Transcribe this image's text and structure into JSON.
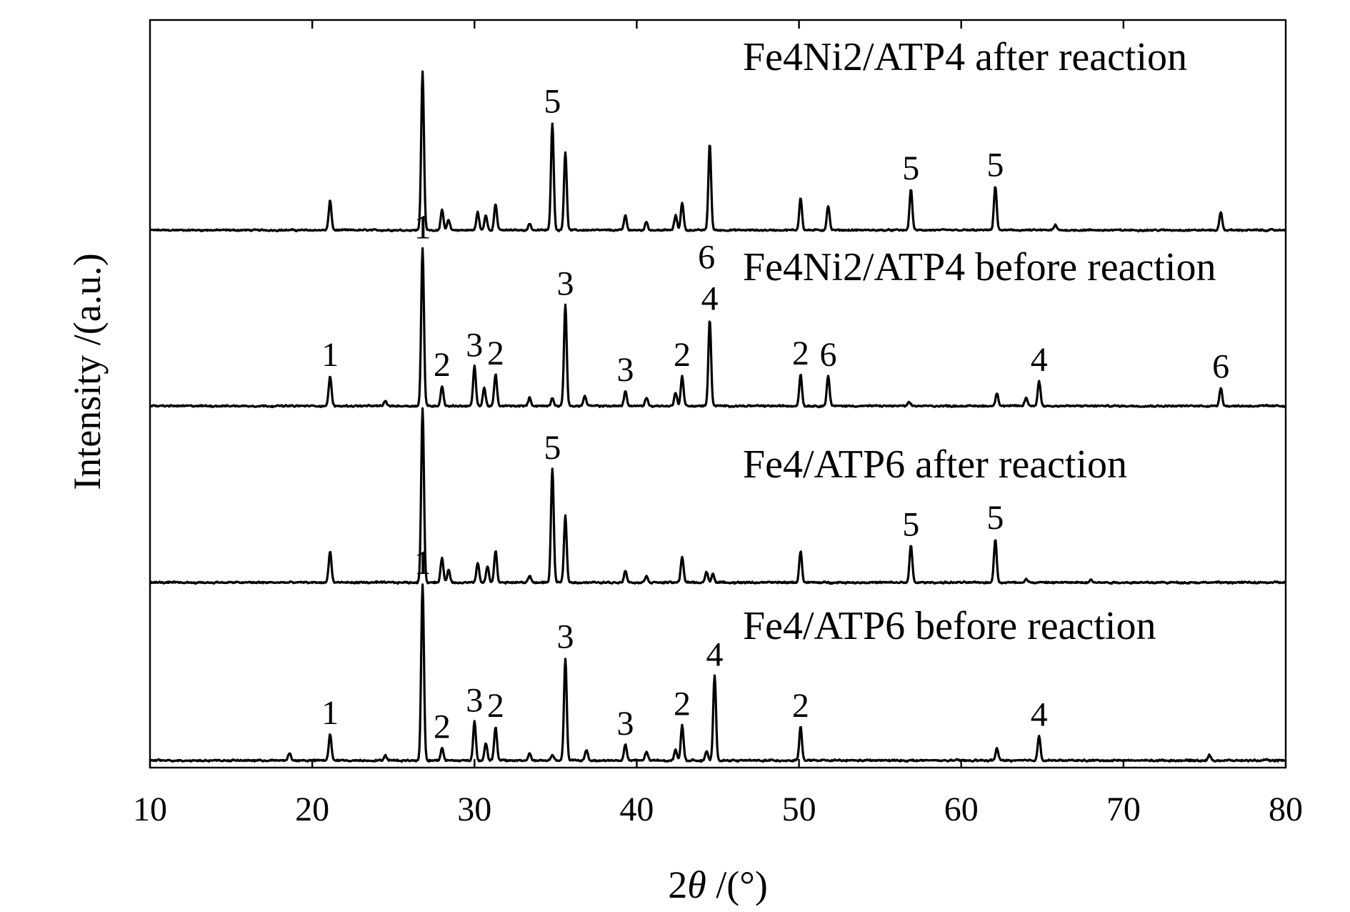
{
  "chart_data": {
    "type": "line",
    "xlabel_prefix": "2",
    "xlabel_symbol": "θ",
    "xlabel_unit": " /(°)",
    "ylabel": "Intensity /(a.u.)",
    "xlim": [
      10,
      80
    ],
    "xticks": [
      10,
      20,
      30,
      40,
      50,
      60,
      70,
      80
    ],
    "y_tick_labels": false,
    "grid": false,
    "legend": "none",
    "series": [
      {
        "name": "Fe4Ni2/ATP4 after reaction",
        "peaks": [
          {
            "x": 21.1,
            "h": 0.18
          },
          {
            "x": 26.8,
            "h": 0.97
          },
          {
            "x": 28.0,
            "h": 0.12
          },
          {
            "x": 28.4,
            "h": 0.06
          },
          {
            "x": 30.2,
            "h": 0.11
          },
          {
            "x": 30.7,
            "h": 0.09
          },
          {
            "x": 31.3,
            "h": 0.16
          },
          {
            "x": 33.4,
            "h": 0.04
          },
          {
            "x": 34.8,
            "h": 0.66
          },
          {
            "x": 35.6,
            "h": 0.48
          },
          {
            "x": 39.3,
            "h": 0.09
          },
          {
            "x": 40.6,
            "h": 0.05
          },
          {
            "x": 42.4,
            "h": 0.09
          },
          {
            "x": 42.8,
            "h": 0.17
          },
          {
            "x": 44.5,
            "h": 0.53
          },
          {
            "x": 50.1,
            "h": 0.2
          },
          {
            "x": 51.8,
            "h": 0.15
          },
          {
            "x": 56.9,
            "h": 0.25
          },
          {
            "x": 62.1,
            "h": 0.27
          },
          {
            "x": 65.8,
            "h": 0.03
          },
          {
            "x": 76.0,
            "h": 0.11
          }
        ],
        "labels": [
          {
            "x": 34.8,
            "text": "5"
          },
          {
            "x": 56.9,
            "text": "5"
          },
          {
            "x": 62.1,
            "text": "5"
          }
        ]
      },
      {
        "name": "Fe4Ni2/ATP4 before reaction",
        "peaks": [
          {
            "x": 21.1,
            "h": 0.18
          },
          {
            "x": 24.5,
            "h": 0.03
          },
          {
            "x": 26.8,
            "h": 0.95
          },
          {
            "x": 28.0,
            "h": 0.12
          },
          {
            "x": 30.0,
            "h": 0.24
          },
          {
            "x": 30.6,
            "h": 0.11
          },
          {
            "x": 31.3,
            "h": 0.19
          },
          {
            "x": 33.4,
            "h": 0.05
          },
          {
            "x": 34.8,
            "h": 0.05
          },
          {
            "x": 35.6,
            "h": 0.61
          },
          {
            "x": 36.8,
            "h": 0.06
          },
          {
            "x": 39.3,
            "h": 0.09
          },
          {
            "x": 40.6,
            "h": 0.05
          },
          {
            "x": 42.4,
            "h": 0.08
          },
          {
            "x": 42.8,
            "h": 0.18
          },
          {
            "x": 44.5,
            "h": 0.52
          },
          {
            "x": 50.1,
            "h": 0.19
          },
          {
            "x": 51.8,
            "h": 0.18
          },
          {
            "x": 56.8,
            "h": 0.02
          },
          {
            "x": 62.2,
            "h": 0.08
          },
          {
            "x": 64.0,
            "h": 0.05
          },
          {
            "x": 64.8,
            "h": 0.15
          },
          {
            "x": 76.0,
            "h": 0.11
          }
        ],
        "labels": [
          {
            "x": 21.1,
            "text": "1"
          },
          {
            "x": 26.8,
            "text": "1"
          },
          {
            "x": 28.0,
            "text": "2"
          },
          {
            "x": 30.0,
            "text": "3"
          },
          {
            "x": 31.3,
            "text": "2"
          },
          {
            "x": 35.6,
            "text": "3"
          },
          {
            "x": 39.3,
            "text": "3"
          },
          {
            "x": 42.8,
            "text": "2"
          },
          {
            "x": 44.5,
            "text": "4"
          },
          {
            "x": 44.3,
            "text": "6",
            "stacked": true
          },
          {
            "x": 50.1,
            "text": "2"
          },
          {
            "x": 51.8,
            "text": "6"
          },
          {
            "x": 64.8,
            "text": "4"
          },
          {
            "x": 76.0,
            "text": "6"
          }
        ]
      },
      {
        "name": "Fe4/ATP6 after reaction",
        "peaks": [
          {
            "x": 21.1,
            "h": 0.18
          },
          {
            "x": 26.8,
            "h": 1.0
          },
          {
            "x": 28.0,
            "h": 0.14
          },
          {
            "x": 28.4,
            "h": 0.07
          },
          {
            "x": 30.2,
            "h": 0.11
          },
          {
            "x": 30.8,
            "h": 0.09
          },
          {
            "x": 31.3,
            "h": 0.18
          },
          {
            "x": 33.4,
            "h": 0.04
          },
          {
            "x": 34.8,
            "h": 0.65
          },
          {
            "x": 35.6,
            "h": 0.38
          },
          {
            "x": 39.3,
            "h": 0.07
          },
          {
            "x": 40.6,
            "h": 0.04
          },
          {
            "x": 42.8,
            "h": 0.15
          },
          {
            "x": 44.3,
            "h": 0.06
          },
          {
            "x": 44.7,
            "h": 0.05
          },
          {
            "x": 50.1,
            "h": 0.18
          },
          {
            "x": 56.9,
            "h": 0.21
          },
          {
            "x": 62.1,
            "h": 0.25
          },
          {
            "x": 64.0,
            "h": 0.02
          },
          {
            "x": 68.0,
            "h": 0.02
          }
        ],
        "labels": [
          {
            "x": 34.8,
            "text": "5"
          },
          {
            "x": 56.9,
            "text": "5"
          },
          {
            "x": 62.1,
            "text": "5"
          }
        ]
      },
      {
        "name": "Fe4/ATP6 before reaction",
        "peaks": [
          {
            "x": 18.6,
            "h": 0.04
          },
          {
            "x": 21.1,
            "h": 0.15
          },
          {
            "x": 24.5,
            "h": 0.03
          },
          {
            "x": 26.8,
            "h": 1.0
          },
          {
            "x": 28.0,
            "h": 0.07
          },
          {
            "x": 30.0,
            "h": 0.22
          },
          {
            "x": 30.7,
            "h": 0.1
          },
          {
            "x": 31.3,
            "h": 0.19
          },
          {
            "x": 33.4,
            "h": 0.04
          },
          {
            "x": 34.8,
            "h": 0.03
          },
          {
            "x": 35.6,
            "h": 0.58
          },
          {
            "x": 36.9,
            "h": 0.06
          },
          {
            "x": 39.3,
            "h": 0.09
          },
          {
            "x": 40.6,
            "h": 0.05
          },
          {
            "x": 42.4,
            "h": 0.06
          },
          {
            "x": 42.8,
            "h": 0.2
          },
          {
            "x": 44.3,
            "h": 0.05
          },
          {
            "x": 44.8,
            "h": 0.48
          },
          {
            "x": 50.1,
            "h": 0.19
          },
          {
            "x": 62.2,
            "h": 0.07
          },
          {
            "x": 64.8,
            "h": 0.14
          },
          {
            "x": 75.3,
            "h": 0.03
          }
        ],
        "labels": [
          {
            "x": 21.1,
            "text": "1"
          },
          {
            "x": 26.8,
            "text": "1"
          },
          {
            "x": 28.0,
            "text": "2"
          },
          {
            "x": 30.0,
            "text": "3"
          },
          {
            "x": 31.3,
            "text": "2"
          },
          {
            "x": 35.6,
            "text": "3"
          },
          {
            "x": 39.3,
            "text": "3"
          },
          {
            "x": 42.8,
            "text": "2"
          },
          {
            "x": 44.8,
            "text": "4"
          },
          {
            "x": 50.1,
            "text": "2"
          },
          {
            "x": 64.8,
            "text": "4"
          }
        ]
      }
    ]
  }
}
